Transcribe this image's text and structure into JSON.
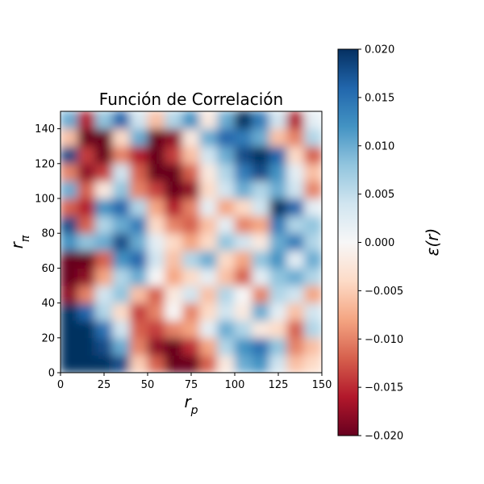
{
  "chart_data": {
    "type": "heatmap",
    "title": "Función de Correlación",
    "xlabel": "r_p",
    "ylabel": "r_π",
    "xlim": [
      0,
      150
    ],
    "ylim": [
      0,
      150
    ],
    "x_ticks": [
      0,
      25,
      50,
      75,
      100,
      125,
      150
    ],
    "y_ticks": [
      0,
      20,
      40,
      60,
      80,
      100,
      120,
      140
    ],
    "colormap": "RdBu",
    "colorbar": {
      "label": "ε(r)",
      "vmin": -0.02,
      "vmax": 0.02,
      "ticks": [
        "0.020",
        "0.015",
        "0.010",
        "0.005",
        "0.000",
        "−0.005",
        "−0.010",
        "−0.015",
        "−0.020"
      ],
      "tick_values": [
        0.02,
        0.015,
        0.01,
        0.005,
        0,
        -0.005,
        -0.01,
        -0.015,
        -0.02
      ]
    },
    "grid_cell_size": 10,
    "values": [
      [
        0.02,
        0.02,
        0.02,
        0.018,
        -0.005,
        -0.012,
        -0.02,
        -0.02,
        -0.012,
        -0.002,
        0.01,
        0.012,
        0.004,
        -0.006,
        -0.004
      ],
      [
        0.02,
        0.02,
        0.018,
        0.01,
        -0.01,
        -0.018,
        -0.02,
        -0.015,
        -0.008,
        0.006,
        0.012,
        0.015,
        0.008,
        -0.01,
        -0.006
      ],
      [
        0.02,
        0.02,
        0.015,
        0.004,
        -0.012,
        -0.014,
        -0.01,
        -0.008,
        0.002,
        0.01,
        0.006,
        -0.002,
        -0.004,
        -0.012,
        0.006
      ],
      [
        0.02,
        0.016,
        0.006,
        -0.004,
        -0.014,
        -0.01,
        0.0,
        -0.01,
        -0.004,
        0.004,
        -0.002,
        0.01,
        0.002,
        -0.006,
        0.004
      ],
      [
        -0.018,
        -0.01,
        0.004,
        0.008,
        -0.006,
        -0.012,
        -0.002,
        0.004,
        -0.006,
        0.006,
        0.0,
        -0.01,
        0.006,
        0.004,
        -0.008
      ],
      [
        -0.02,
        -0.018,
        -0.008,
        0.006,
        0.01,
        0.0,
        -0.008,
        -0.004,
        0.002,
        -0.006,
        -0.012,
        0.002,
        0.008,
        0.01,
        0.006
      ],
      [
        -0.02,
        -0.02,
        -0.012,
        0.012,
        0.016,
        0.004,
        -0.006,
        0.006,
        0.01,
        -0.004,
        -0.008,
        0.008,
        0.012,
        0.002,
        0.01
      ],
      [
        0.012,
        0.008,
        0.01,
        0.018,
        0.01,
        0.002,
        -0.004,
        -0.008,
        -0.004,
        0.008,
        0.004,
        -0.002,
        0.01,
        0.014,
        0.006
      ],
      [
        0.018,
        -0.012,
        0.006,
        0.01,
        0.014,
        -0.004,
        -0.01,
        -0.012,
        -0.006,
        0.002,
        -0.01,
        -0.008,
        0.014,
        0.006,
        0.008
      ],
      [
        -0.012,
        -0.016,
        0.012,
        0.016,
        0.006,
        -0.008,
        -0.016,
        -0.01,
        0.002,
        -0.008,
        -0.004,
        0.004,
        0.02,
        0.016,
        0.002
      ],
      [
        0.01,
        -0.012,
        -0.002,
        0.008,
        -0.01,
        -0.014,
        -0.02,
        -0.018,
        -0.004,
        0.004,
        0.01,
        0.006,
        0.01,
        0.004,
        -0.01
      ],
      [
        -0.01,
        -0.018,
        -0.014,
        0.004,
        -0.012,
        -0.02,
        -0.02,
        -0.012,
        -0.002,
        0.006,
        0.014,
        0.018,
        0.012,
        0.002,
        -0.006
      ],
      [
        0.018,
        -0.014,
        -0.02,
        -0.01,
        -0.016,
        -0.02,
        -0.014,
        -0.006,
        0.004,
        0.01,
        0.018,
        0.02,
        0.016,
        -0.004,
        -0.012
      ],
      [
        -0.006,
        -0.02,
        -0.02,
        -0.004,
        0.01,
        -0.02,
        -0.018,
        -0.002,
        0.01,
        0.016,
        0.014,
        0.01,
        -0.006,
        -0.01,
        0.006
      ],
      [
        0.01,
        -0.016,
        0.008,
        0.016,
        0.004,
        -0.006,
        0.006,
        0.012,
        -0.002,
        0.01,
        0.02,
        0.014,
        0.004,
        -0.016,
        0.002
      ]
    ]
  }
}
